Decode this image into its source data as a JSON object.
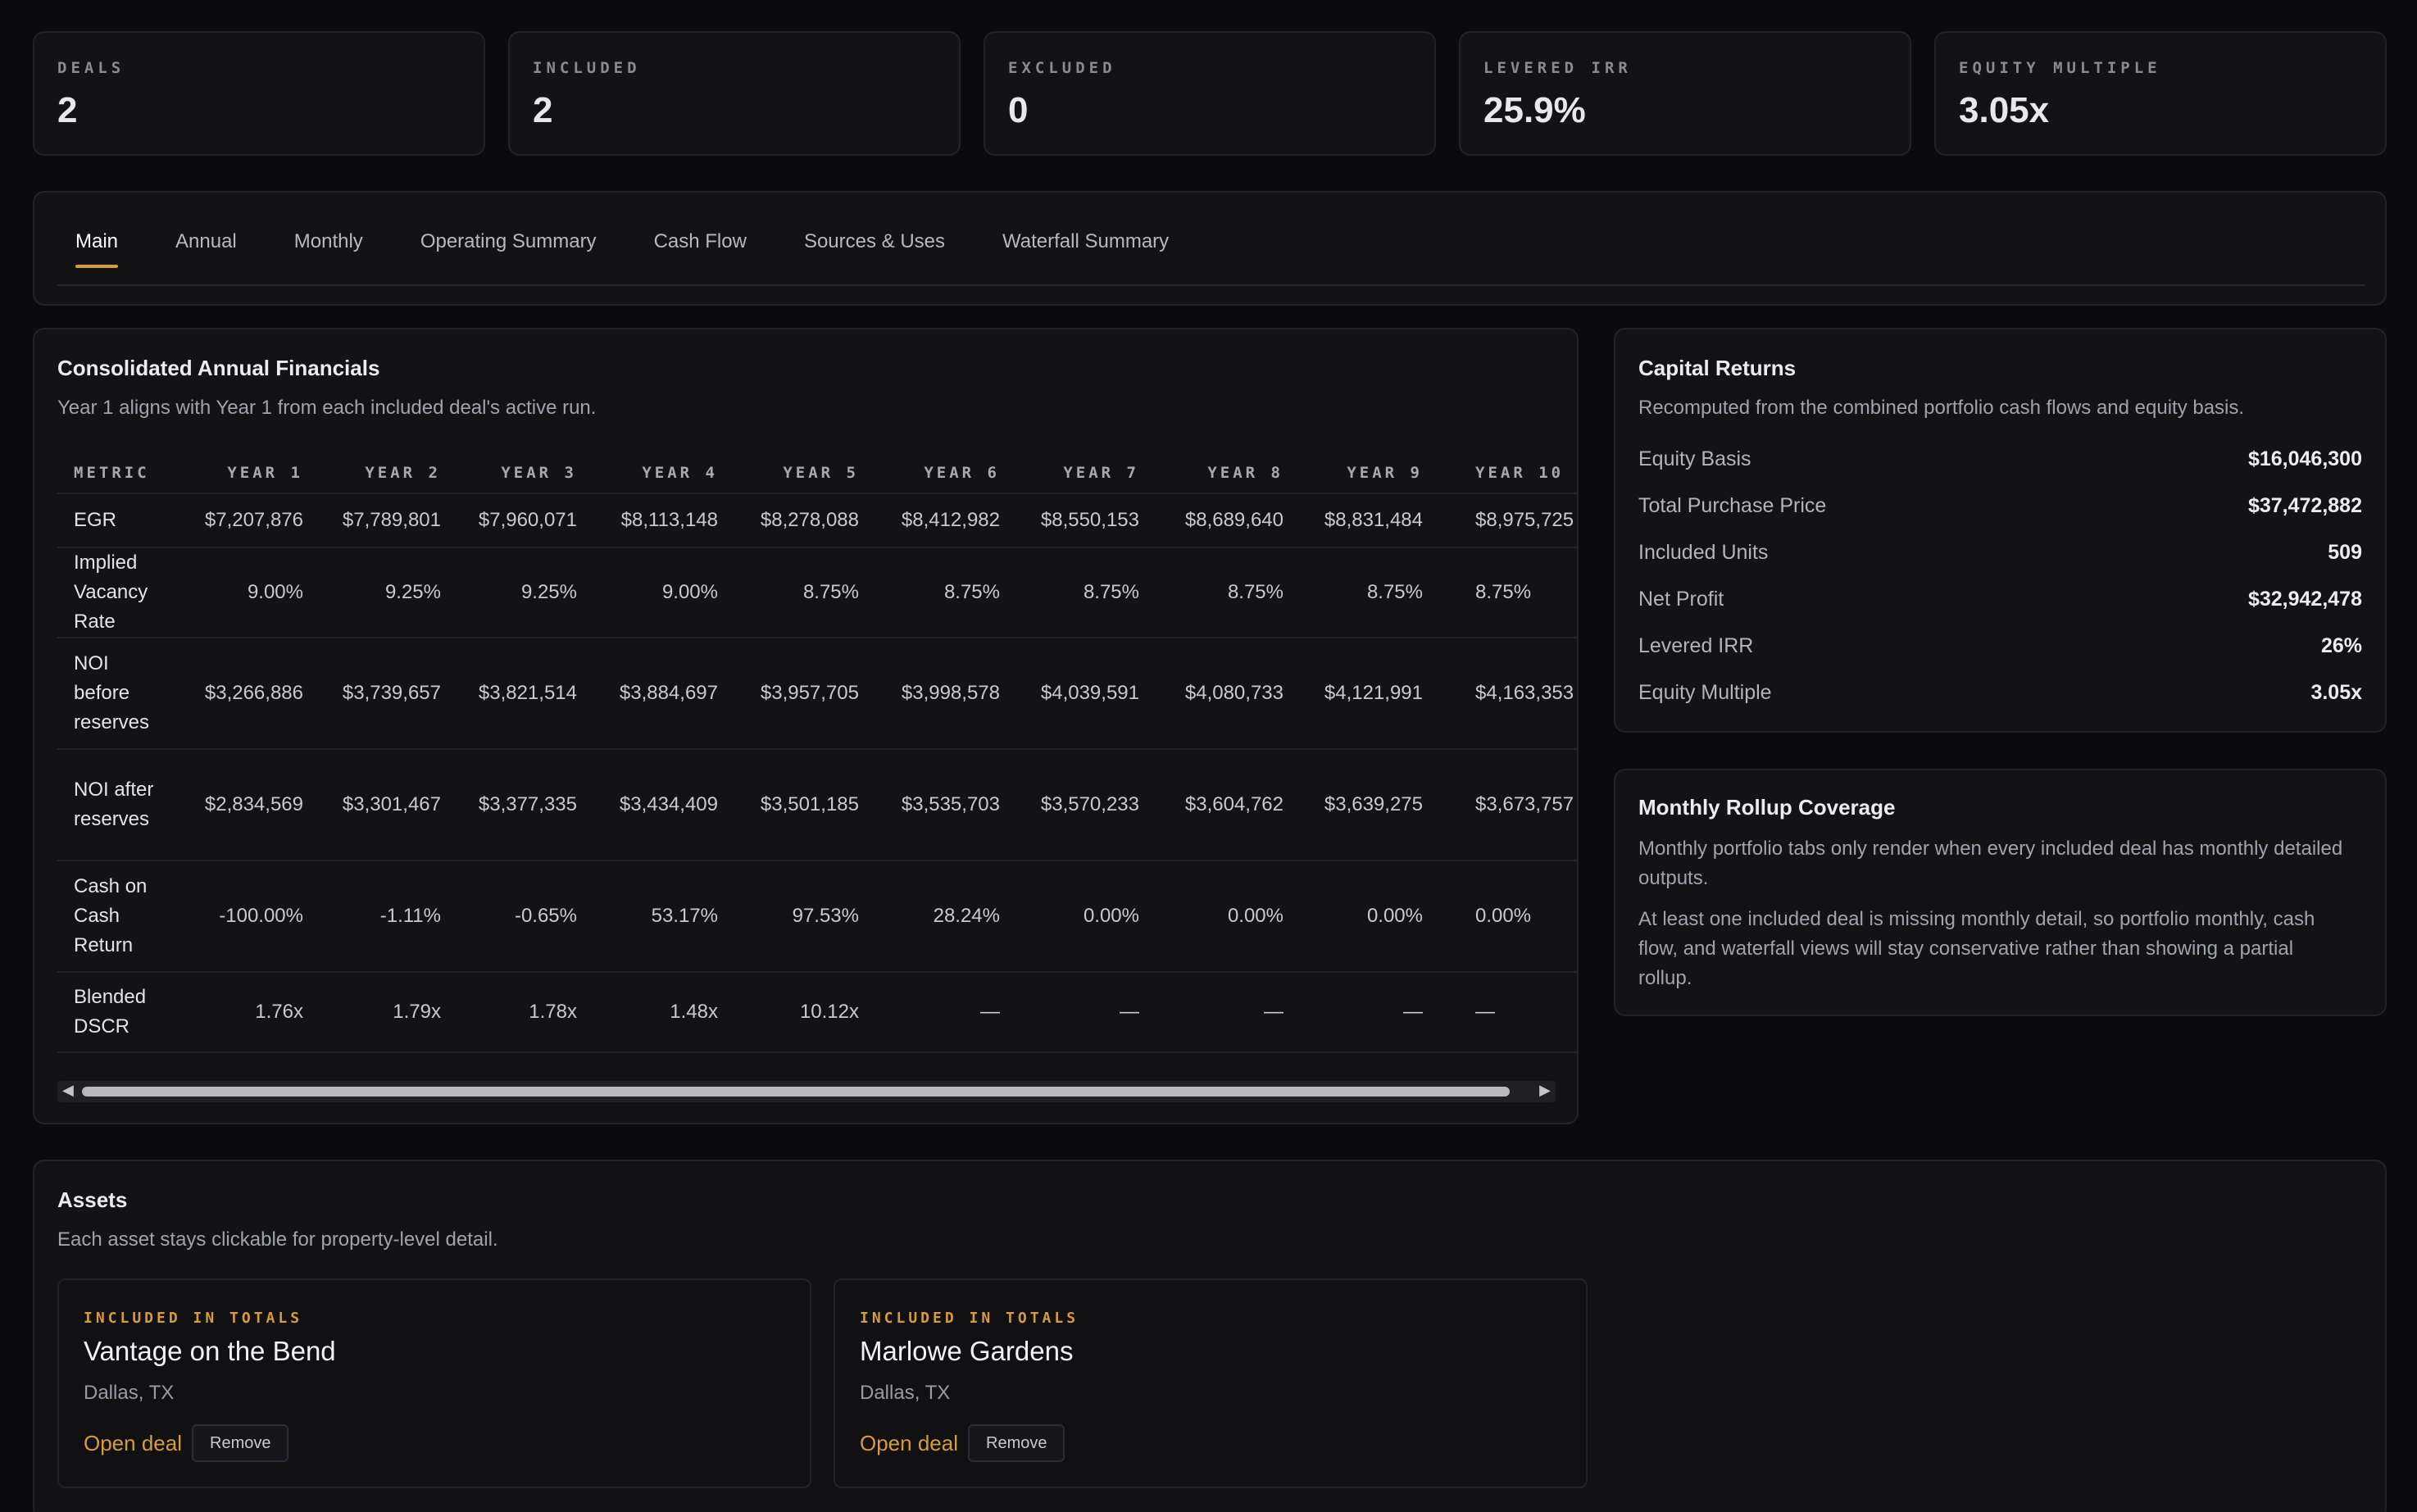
{
  "stats": [
    {
      "label": "DEALS",
      "value": "2"
    },
    {
      "label": "INCLUDED",
      "value": "2"
    },
    {
      "label": "EXCLUDED",
      "value": "0"
    },
    {
      "label": "LEVERED IRR",
      "value": "25.9%"
    },
    {
      "label": "EQUITY MULTIPLE",
      "value": "3.05x"
    }
  ],
  "tabs": [
    "Main",
    "Annual",
    "Monthly",
    "Operating Summary",
    "Cash Flow",
    "Sources & Uses",
    "Waterfall Summary"
  ],
  "active_tab": "Main",
  "financials": {
    "title": "Consolidated Annual Financials",
    "subtitle": "Year 1 aligns with Year 1 from each included deal's active run.",
    "headers": [
      "METRIC",
      "YEAR 1",
      "YEAR 2",
      "YEAR 3",
      "YEAR 4",
      "YEAR 5",
      "YEAR 6",
      "YEAR 7",
      "YEAR 8",
      "YEAR 9",
      "YEAR 10"
    ],
    "rows": [
      {
        "metric": "EGR",
        "values": [
          "$7,207,876",
          "$7,789,801",
          "$7,960,071",
          "$8,113,148",
          "$8,278,088",
          "$8,412,982",
          "$8,550,153",
          "$8,689,640",
          "$8,831,484",
          "$8,975,725"
        ]
      },
      {
        "metric": "Implied Vacancy Rate",
        "values": [
          "9.00%",
          "9.25%",
          "9.25%",
          "9.00%",
          "8.75%",
          "8.75%",
          "8.75%",
          "8.75%",
          "8.75%",
          "8.75%"
        ]
      },
      {
        "metric": "NOI before reserves",
        "values": [
          "$3,266,886",
          "$3,739,657",
          "$3,821,514",
          "$3,884,697",
          "$3,957,705",
          "$3,998,578",
          "$4,039,591",
          "$4,080,733",
          "$4,121,991",
          "$4,163,353"
        ]
      },
      {
        "metric": "NOI after reserves",
        "values": [
          "$2,834,569",
          "$3,301,467",
          "$3,377,335",
          "$3,434,409",
          "$3,501,185",
          "$3,535,703",
          "$3,570,233",
          "$3,604,762",
          "$3,639,275",
          "$3,673,757"
        ]
      },
      {
        "metric": "Cash on Cash Return",
        "values": [
          "-100.00%",
          "-1.11%",
          "-0.65%",
          "53.17%",
          "97.53%",
          "28.24%",
          "0.00%",
          "0.00%",
          "0.00%",
          "0.00%"
        ]
      },
      {
        "metric": "Blended DSCR",
        "values": [
          "1.76x",
          "1.79x",
          "1.78x",
          "1.48x",
          "10.12x",
          "—",
          "—",
          "—",
          "—",
          "—"
        ]
      }
    ]
  },
  "capital_returns": {
    "title": "Capital Returns",
    "subtitle": "Recomputed from the combined portfolio cash flows and equity basis.",
    "items": [
      {
        "label": "Equity Basis",
        "value": "$16,046,300"
      },
      {
        "label": "Total Purchase Price",
        "value": "$37,472,882"
      },
      {
        "label": "Included Units",
        "value": "509"
      },
      {
        "label": "Net Profit",
        "value": "$32,942,478"
      },
      {
        "label": "Levered IRR",
        "value": "26%"
      },
      {
        "label": "Equity Multiple",
        "value": "3.05x"
      }
    ]
  },
  "rollup": {
    "title": "Monthly Rollup Coverage",
    "para1": "Monthly portfolio tabs only render when every included deal has monthly detailed outputs.",
    "para2": "At least one included deal is missing monthly detail, so portfolio monthly, cash flow, and waterfall views will stay conservative rather than showing a partial rollup."
  },
  "assets": {
    "title": "Assets",
    "subtitle": "Each asset stays clickable for property-level detail.",
    "items": [
      {
        "tag": "INCLUDED IN TOTALS",
        "name": "Vantage on the Bend",
        "location": "Dallas, TX",
        "open_label": "Open deal",
        "remove_label": "Remove"
      },
      {
        "tag": "INCLUDED IN TOTALS",
        "name": "Marlowe Gardens",
        "location": "Dallas, TX",
        "open_label": "Open deal",
        "remove_label": "Remove"
      }
    ]
  },
  "colors": {
    "accent": "#d79b3b",
    "background": "#0b0b0d",
    "card": "#131316"
  }
}
